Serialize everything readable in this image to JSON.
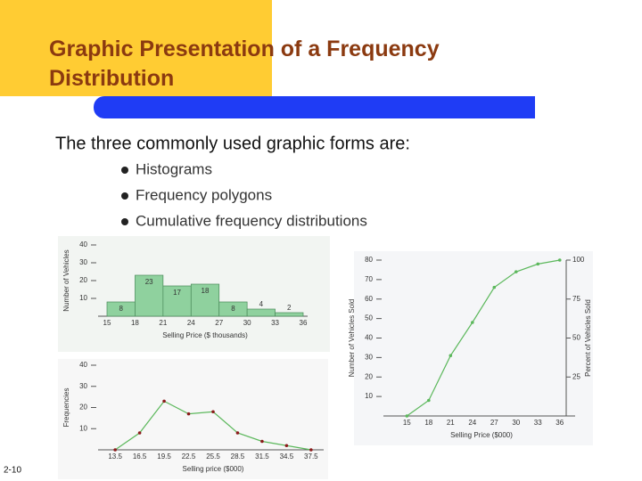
{
  "slide": {
    "title": "Graphic Presentation of a Frequency Distribution",
    "intro": "The three commonly used graphic forms are:",
    "bullets": [
      "Histograms",
      "Frequency polygons",
      "Cumulative frequency distributions"
    ],
    "page_number": "2-10"
  },
  "chart_data": [
    {
      "type": "histogram",
      "bins": [
        15,
        18,
        21,
        24,
        27,
        30,
        33,
        36
      ],
      "values": [
        8,
        23,
        17,
        18,
        8,
        4,
        2
      ],
      "color": "#8fd19e",
      "ylim": [
        0,
        40
      ],
      "yticks": [
        10,
        20,
        30,
        40
      ],
      "xlabel": "Selling Price ($ thousands)",
      "ylabel": "Number of Vehicles"
    },
    {
      "type": "line",
      "x": [
        13.5,
        16.5,
        19.5,
        22.5,
        25.5,
        28.5,
        31.5,
        34.5,
        37.5
      ],
      "values": [
        0,
        8,
        23,
        17,
        18,
        8,
        4,
        2,
        0
      ],
      "color": "#5cb85c",
      "marker_color": "#8b1a1a",
      "xlim": [
        12.5,
        38.5
      ],
      "xticks": [
        13.5,
        16.5,
        19.5,
        22.5,
        25.5,
        28.5,
        31.5,
        34.5,
        37.5
      ],
      "ylim": [
        0,
        40
      ],
      "yticks": [
        10,
        20,
        30,
        40
      ],
      "xlabel": "Selling price ($000)",
      "ylabel": "Frequencies"
    },
    {
      "type": "line",
      "x": [
        15,
        18,
        21,
        24,
        27,
        30,
        33,
        36
      ],
      "values": [
        0,
        8,
        31,
        48,
        66,
        74,
        78,
        80
      ],
      "color": "#5cb85c",
      "marker_color": "#5cb85c",
      "xlim": [
        13,
        37.5
      ],
      "xticks": [
        15,
        18,
        21,
        24,
        27,
        30,
        33,
        36
      ],
      "ylim": [
        0,
        80
      ],
      "yticks": [
        10,
        20,
        30,
        40,
        50,
        60,
        70,
        80
      ],
      "y2lim": [
        0,
        100
      ],
      "y2ticks": [
        25,
        50,
        75,
        100
      ],
      "xlabel": "Selling Price ($000)",
      "ylabel": "Number of Vehicles Sold",
      "y2label": "Percent of Vehicles Sold"
    }
  ]
}
